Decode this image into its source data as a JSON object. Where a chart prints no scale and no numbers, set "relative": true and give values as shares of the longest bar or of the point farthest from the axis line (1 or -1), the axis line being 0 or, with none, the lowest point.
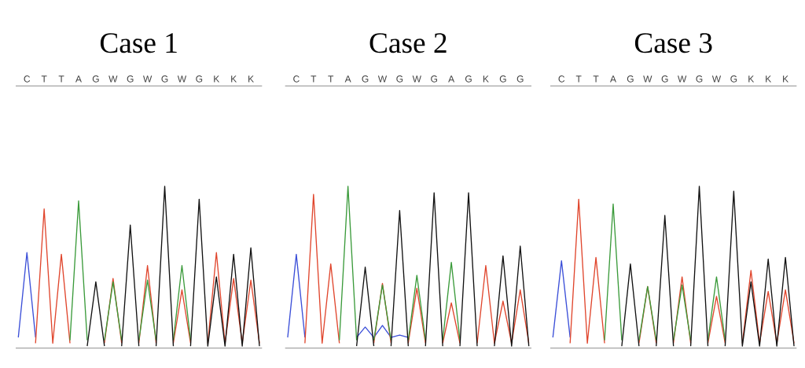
{
  "chart_data": [
    {
      "type": "line",
      "title": "Case 1",
      "relative": true,
      "categories": [
        null,
        "C",
        null,
        "T",
        null,
        "T",
        null,
        "A",
        null,
        "G",
        null,
        "W",
        null,
        "G",
        null,
        "W",
        null,
        "G",
        null,
        "W",
        null,
        "G",
        null,
        "K",
        null,
        "K",
        null,
        "K",
        null
      ],
      "series": [
        {
          "color": "#3b4fd8",
          "values": [
            0.066,
            0.59,
            0.066,
            null,
            null,
            null,
            null,
            null,
            null,
            null,
            null,
            null,
            null,
            null,
            null,
            null,
            null,
            null,
            null,
            null,
            null,
            null,
            null,
            null,
            null,
            null,
            null,
            null,
            null
          ]
        },
        {
          "color": "#e0452c",
          "values": [
            null,
            null,
            0.03,
            0.86,
            0.03,
            0.58,
            0.03,
            null,
            null,
            null,
            0.03,
            0.43,
            0.03,
            null,
            0.03,
            0.51,
            0.03,
            null,
            0.03,
            0.36,
            0.03,
            null,
            0.03,
            0.59,
            0.03,
            0.43,
            0.03,
            0.42,
            0.03
          ]
        },
        {
          "color": "#3a9a3a",
          "values": [
            null,
            null,
            null,
            null,
            null,
            null,
            0.048,
            0.91,
            0.048,
            null,
            0.048,
            0.41,
            0.048,
            null,
            0.048,
            0.42,
            0.048,
            null,
            0.048,
            0.51,
            0.048,
            null,
            null,
            null,
            null,
            null,
            null,
            null,
            null
          ]
        },
        {
          "color": "#111111",
          "values": [
            null,
            null,
            null,
            null,
            null,
            null,
            null,
            null,
            0.012,
            0.41,
            0.012,
            null,
            0.012,
            0.76,
            0.012,
            null,
            0.012,
            1,
            0.012,
            null,
            0.012,
            0.92,
            0.012,
            0.44,
            0.012,
            0.58,
            0.012,
            0.62,
            0.012
          ]
        }
      ]
    },
    {
      "type": "line",
      "title": "Case 2",
      "relative": true,
      "categories": [
        null,
        "C",
        null,
        "T",
        null,
        "T",
        null,
        "A",
        null,
        "G",
        null,
        "W",
        null,
        "G",
        null,
        "W",
        null,
        "G",
        null,
        "A",
        null,
        "G",
        null,
        "K",
        null,
        "G",
        null,
        "G",
        null
      ],
      "series": [
        {
          "color": "#3b4fd8",
          "values": [
            0.066,
            0.58,
            0.066,
            null,
            null,
            null,
            null,
            null,
            0.066,
            0.13,
            0.066,
            0.14,
            0.066,
            0.08,
            0.066,
            null,
            null,
            null,
            null,
            null,
            null,
            null,
            null,
            null,
            null,
            null,
            null,
            null,
            null
          ]
        },
        {
          "color": "#e0452c",
          "values": [
            null,
            null,
            0.03,
            0.95,
            0.03,
            0.52,
            0.03,
            null,
            null,
            null,
            0.03,
            0.4,
            0.03,
            null,
            0.03,
            0.37,
            0.03,
            null,
            0.03,
            0.28,
            0.03,
            null,
            0.03,
            0.51,
            0.03,
            0.29,
            0.03,
            0.36,
            0.03
          ]
        },
        {
          "color": "#3a9a3a",
          "values": [
            null,
            null,
            null,
            null,
            null,
            null,
            0.048,
            1,
            0.048,
            null,
            0.048,
            0.39,
            0.048,
            null,
            0.048,
            0.45,
            0.048,
            null,
            0.048,
            0.53,
            0.048,
            null,
            null,
            null,
            null,
            null,
            null,
            null,
            null
          ]
        },
        {
          "color": "#111111",
          "values": [
            null,
            null,
            null,
            null,
            null,
            null,
            null,
            null,
            0.012,
            0.5,
            0.012,
            null,
            0.012,
            0.85,
            0.012,
            null,
            0.012,
            0.96,
            0.012,
            null,
            0.012,
            0.96,
            0.012,
            null,
            0.012,
            0.57,
            0.012,
            0.63,
            0.012
          ]
        }
      ]
    },
    {
      "type": "line",
      "title": "Case 3",
      "relative": true,
      "categories": [
        null,
        "C",
        null,
        "T",
        null,
        "T",
        null,
        "A",
        null,
        "G",
        null,
        "W",
        null,
        "G",
        null,
        "W",
        null,
        "G",
        null,
        "W",
        null,
        "G",
        null,
        "K",
        null,
        "K",
        null,
        "K",
        null
      ],
      "series": [
        {
          "color": "#3b4fd8",
          "values": [
            0.066,
            0.54,
            0.066,
            null,
            null,
            null,
            null,
            null,
            null,
            null,
            null,
            null,
            null,
            null,
            null,
            null,
            null,
            null,
            null,
            null,
            null,
            null,
            null,
            null,
            null,
            null,
            null,
            null,
            null
          ]
        },
        {
          "color": "#e0452c",
          "values": [
            null,
            null,
            0.03,
            0.92,
            0.03,
            0.56,
            0.03,
            null,
            null,
            null,
            0.03,
            0.38,
            0.03,
            null,
            0.03,
            0.44,
            0.03,
            null,
            0.03,
            0.32,
            0.03,
            null,
            0.03,
            0.48,
            0.03,
            0.35,
            0.03,
            0.36,
            0.03
          ]
        },
        {
          "color": "#3a9a3a",
          "values": [
            null,
            null,
            null,
            null,
            null,
            null,
            0.048,
            0.89,
            0.048,
            null,
            0.048,
            0.38,
            0.048,
            null,
            0.048,
            0.39,
            0.048,
            null,
            0.048,
            0.44,
            0.048,
            null,
            null,
            null,
            null,
            null,
            null,
            null,
            null
          ]
        },
        {
          "color": "#111111",
          "values": [
            null,
            null,
            null,
            null,
            null,
            null,
            null,
            null,
            0.012,
            0.52,
            0.012,
            null,
            0.012,
            0.82,
            0.012,
            null,
            0.012,
            1,
            0.012,
            null,
            0.012,
            0.97,
            0.012,
            0.41,
            0.012,
            0.55,
            0.012,
            0.56,
            0.012
          ]
        }
      ]
    }
  ]
}
